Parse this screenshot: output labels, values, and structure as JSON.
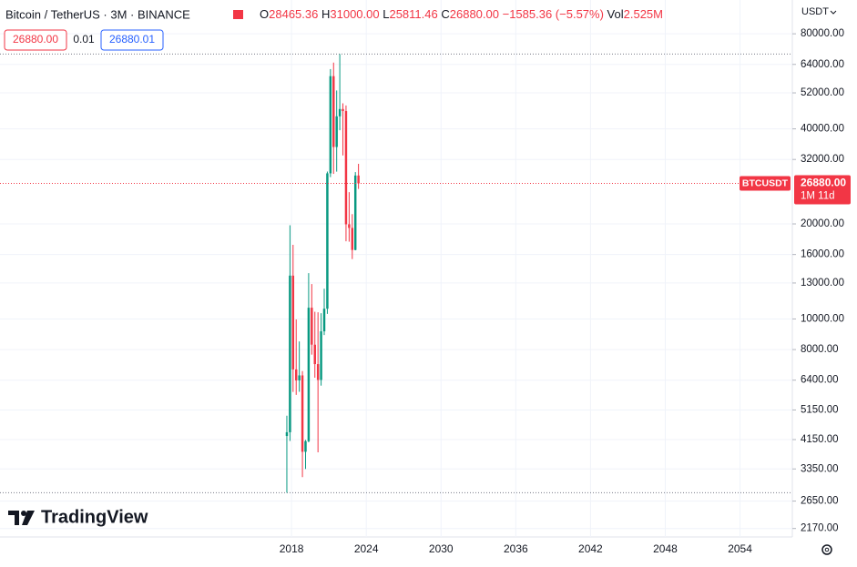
{
  "chart_data": {
    "type": "candlestick",
    "title": "Bitcoin / TetherUS · 3M · BINANCE",
    "stats": [
      {
        "key": "O",
        "label": "28465.36"
      },
      {
        "key": "H",
        "label": "31000.00"
      },
      {
        "key": "L",
        "label": "25811.46"
      },
      {
        "key": "C",
        "label": "26880.00"
      }
    ],
    "change": "−1585.36 (−5.57%)",
    "volume": {
      "key": "Vol",
      "label": "2.525M"
    },
    "bid": "26880.00",
    "spread": "0.01",
    "ask": "26880.01",
    "currency": "USDT",
    "brand": "TradingView",
    "x": [
      2017.5,
      2017.75,
      2018,
      2018.25,
      2018.5,
      2018.75,
      2019,
      2019.25,
      2019.5,
      2019.75,
      2020,
      2020.25,
      2020.5,
      2020.75,
      2021,
      2021.25,
      2021.5,
      2021.75,
      2022,
      2022.25,
      2022.5,
      2022.75,
      2023,
      2023.25
    ],
    "open": [
      4261,
      4378,
      13715,
      6922,
      6391,
      6626,
      3797,
      4102,
      10855,
      8289,
      7195,
      6412,
      9138,
      10776,
      28923,
      58740,
      35045,
      43824,
      46216,
      45538,
      19943,
      19423,
      16542,
      28465.36
    ],
    "high": [
      4939,
      19798,
      17176,
      9965,
      8488,
      6839,
      4140,
      13970,
      12900,
      10540,
      10500,
      10428,
      12468,
      29300,
      61844,
      64854,
      52920,
      69000,
      48190,
      47454,
      25211,
      21480,
      29184,
      31000
    ],
    "low": [
      2817,
      4110,
      5873,
      5750,
      5880,
      3156,
      3349,
      4067,
      7710,
      6515,
      3782,
      6150,
      8893,
      10375,
      28130,
      28805,
      29278,
      39600,
      32950,
      17622,
      17567,
      15476,
      16499,
      25811.46
    ],
    "close": [
      4378,
      13716,
      6923,
      6390,
      6626,
      3797,
      4103,
      10854,
      8293,
      7195,
      6410,
      9138,
      10776,
      28923,
      58740,
      35045,
      43824,
      46216,
      45538,
      19943,
      19422,
      16542,
      28465,
      26880
    ],
    "up_color": "#089981",
    "down_color": "#f23645",
    "log_scale": true,
    "grid": true,
    "ylim": [
      2040,
      85000
    ],
    "yticks": [
      {
        "value": 80000,
        "label": "80000.00"
      },
      {
        "value": 64000,
        "label": "64000.00"
      },
      {
        "value": 52000,
        "label": "52000.00"
      },
      {
        "value": 40000,
        "label": "40000.00"
      },
      {
        "value": 32000,
        "label": "32000.00"
      },
      {
        "value": 20000,
        "label": "20000.00"
      },
      {
        "value": 16000,
        "label": "16000.00"
      },
      {
        "value": 13000,
        "label": "13000.00"
      },
      {
        "value": 10000,
        "label": "10000.00"
      },
      {
        "value": 8000,
        "label": "8000.00"
      },
      {
        "value": 6400,
        "label": "6400.00"
      },
      {
        "value": 5150,
        "label": "5150.00"
      },
      {
        "value": 4150,
        "label": "4150.00"
      },
      {
        "value": 3350,
        "label": "3350.00"
      },
      {
        "value": 2650,
        "label": "2650.00"
      },
      {
        "value": 2170,
        "label": "2170.00"
      }
    ],
    "xlim": [
      1994.6,
      2058.2
    ],
    "xticks": [
      2018,
      2024,
      2030,
      2036,
      2042,
      2048,
      2054
    ],
    "last_price": {
      "symbol": "BTCUSDT",
      "value": 26880,
      "label": "26880.00",
      "countdown": "1M 11d"
    }
  }
}
